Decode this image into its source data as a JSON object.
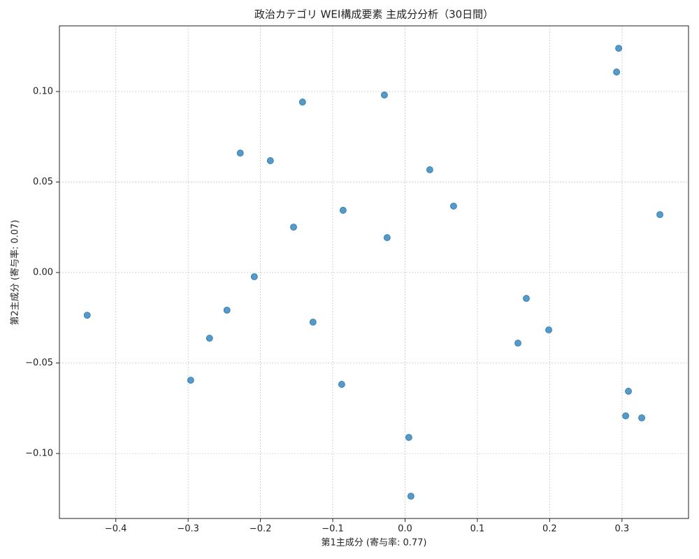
{
  "chart_data": {
    "type": "scatter",
    "title": "政治カテゴリ WEI構成要素 主成分分析（30日間）",
    "x_label": "第1主成分 (寄与率: 0.77)",
    "y_label": "第2主成分 (寄与率: 0.07)",
    "color": "#1f77b4",
    "grid": true,
    "xlim": [
      -0.478,
      0.392
    ],
    "ylim": [
      -0.1359,
      0.1363
    ],
    "xticks": [
      {
        "value": -0.4,
        "label": "−0.4"
      },
      {
        "value": -0.3,
        "label": "−0.3"
      },
      {
        "value": -0.2,
        "label": "−0.2"
      },
      {
        "value": -0.1,
        "label": "−0.1"
      },
      {
        "value": 0,
        "label": "0.0"
      },
      0.1,
      0.2,
      0.3
    ],
    "yticks": [
      {
        "value": -0.1,
        "label": "−0.10"
      },
      {
        "value": -0.05,
        "label": "−0.05"
      },
      {
        "value": 0,
        "label": "0.00"
      },
      {
        "value": 0.05,
        "label": "0.05"
      },
      {
        "value": 0.1,
        "label": "0.10"
      }
    ],
    "x": [
      0.2954,
      0.2925,
      -0.1418,
      -0.0286,
      -0.2279,
      -0.1863,
      0.0342,
      0.0671,
      -0.0857,
      0.3524,
      -0.1542,
      -0.0248,
      -0.2085,
      0.1677,
      -0.2463,
      -0.4396,
      -0.1273,
      0.1987,
      -0.2704,
      0.1561,
      -0.2965,
      -0.0876,
      0.3089,
      0.3051,
      0.3273,
      0.0052,
      0.0081
    ],
    "values": [
      0.1239,
      0.1108,
      0.0942,
      0.0981,
      0.066,
      0.0618,
      0.0568,
      0.0367,
      0.0344,
      0.032,
      0.0251,
      0.0193,
      -0.0023,
      -0.0143,
      -0.0208,
      -0.0236,
      -0.0274,
      -0.0317,
      -0.0363,
      -0.039,
      -0.0595,
      -0.0618,
      -0.0656,
      -0.0792,
      -0.0803,
      -0.0911,
      -0.1236
    ]
  }
}
